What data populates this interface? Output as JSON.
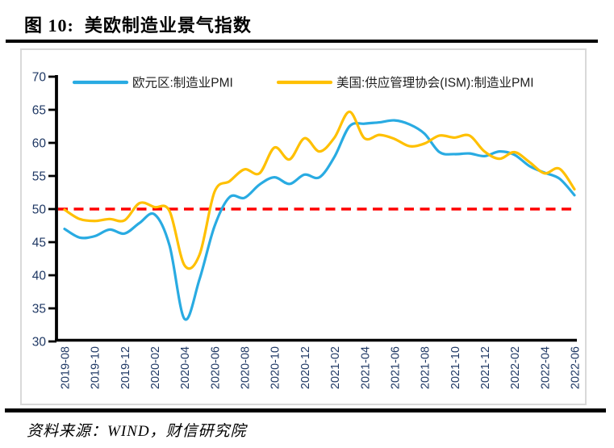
{
  "figure": {
    "title": "图 10:  美欧制造业景气指数",
    "source": "资料来源：WIND，财信研究院"
  },
  "chart_data": {
    "type": "line",
    "title": "美欧制造业景气指数",
    "x": [
      "2019-08",
      "2019-09",
      "2019-10",
      "2019-11",
      "2019-12",
      "2020-01",
      "2020-02",
      "2020-03",
      "2020-04",
      "2020-05",
      "2020-06",
      "2020-07",
      "2020-08",
      "2020-09",
      "2020-10",
      "2020-11",
      "2020-12",
      "2021-01",
      "2021-02",
      "2021-03",
      "2021-04",
      "2021-05",
      "2021-06",
      "2021-07",
      "2021-08",
      "2021-09",
      "2021-10",
      "2021-11",
      "2021-12",
      "2022-01",
      "2022-02",
      "2022-03",
      "2022-04",
      "2022-05",
      "2022-06"
    ],
    "x_tick_labels": [
      "2019-08",
      "2019-10",
      "2019-12",
      "2020-02",
      "2020-04",
      "2020-06",
      "2020-08",
      "2020-10",
      "2020-12",
      "2021-02",
      "2021-04",
      "2021-06",
      "2021-08",
      "2021-10",
      "2021-12",
      "2022-02",
      "2022-04",
      "2022-06"
    ],
    "series": [
      {
        "name": "欧元区:制造业PMI",
        "color": "#29ABE2",
        "values": [
          47.0,
          45.7,
          45.9,
          46.9,
          46.3,
          47.9,
          49.2,
          44.5,
          33.4,
          39.4,
          47.4,
          51.8,
          51.7,
          53.7,
          54.8,
          53.8,
          55.2,
          54.8,
          57.9,
          62.5,
          62.9,
          63.1,
          63.4,
          62.8,
          61.4,
          58.6,
          58.3,
          58.4,
          58.0,
          58.7,
          58.2,
          56.5,
          55.5,
          54.6,
          52.1
        ]
      },
      {
        "name": "美国:供应管理协会(ISM):制造业PMI",
        "color": "#FFC000",
        "values": [
          49.9,
          48.5,
          48.2,
          48.5,
          48.3,
          50.9,
          50.3,
          49.7,
          41.5,
          43.1,
          52.6,
          54.2,
          56.0,
          55.4,
          59.3,
          57.5,
          60.7,
          58.7,
          60.8,
          64.7,
          60.7,
          61.2,
          60.6,
          59.5,
          59.9,
          61.1,
          60.8,
          61.1,
          58.7,
          57.6,
          58.6,
          57.1,
          55.4,
          56.1,
          53.0
        ]
      }
    ],
    "reference_line": {
      "value": 50,
      "color": "#FF0000",
      "style": "dashed"
    },
    "ylim": [
      30,
      70
    ],
    "yticks": [
      30,
      35,
      40,
      45,
      50,
      55,
      60,
      65,
      70
    ],
    "legend_position": "top",
    "grid": false,
    "colors": {
      "axis": "#000000",
      "tick_label": "#1F3864",
      "legend_text": "#202020",
      "frame": "#D9D9D9"
    }
  }
}
